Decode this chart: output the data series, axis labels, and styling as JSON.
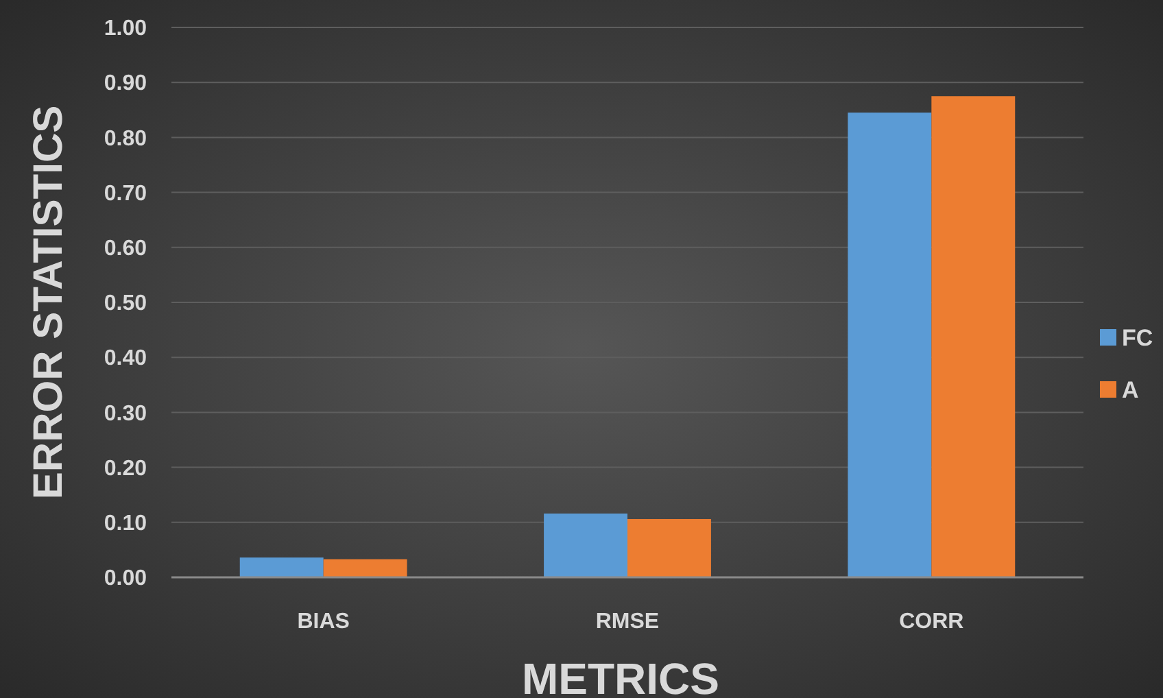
{
  "chart_data": {
    "type": "bar",
    "xlabel": "METRICS",
    "ylabel": "ERROR STATISTICS",
    "categories": [
      "BIAS",
      "RMSE",
      "CORR"
    ],
    "series": [
      {
        "name": "FC",
        "color": "#5b9bd5",
        "values": [
          0.036,
          0.116,
          0.845
        ]
      },
      {
        "name": "A",
        "color": "#ed7d31",
        "values": [
          0.033,
          0.106,
          0.875
        ]
      }
    ],
    "ylim": [
      0,
      1
    ],
    "yticks": [
      {
        "value": 0,
        "label": "0.00"
      },
      {
        "value": 0.1,
        "label": "0.10"
      },
      {
        "value": 0.2,
        "label": "0.20"
      },
      {
        "value": 0.3,
        "label": "0.30"
      },
      {
        "value": 0.4,
        "label": "0.40"
      },
      {
        "value": 0.5,
        "label": "0.50"
      },
      {
        "value": 0.6,
        "label": "0.60"
      },
      {
        "value": 0.7,
        "label": "0.70"
      },
      {
        "value": 0.8,
        "label": "0.80"
      },
      {
        "value": 0.9,
        "label": "0.90"
      },
      {
        "value": 1,
        "label": "1.00"
      }
    ],
    "grid": "y",
    "legend": "right"
  }
}
